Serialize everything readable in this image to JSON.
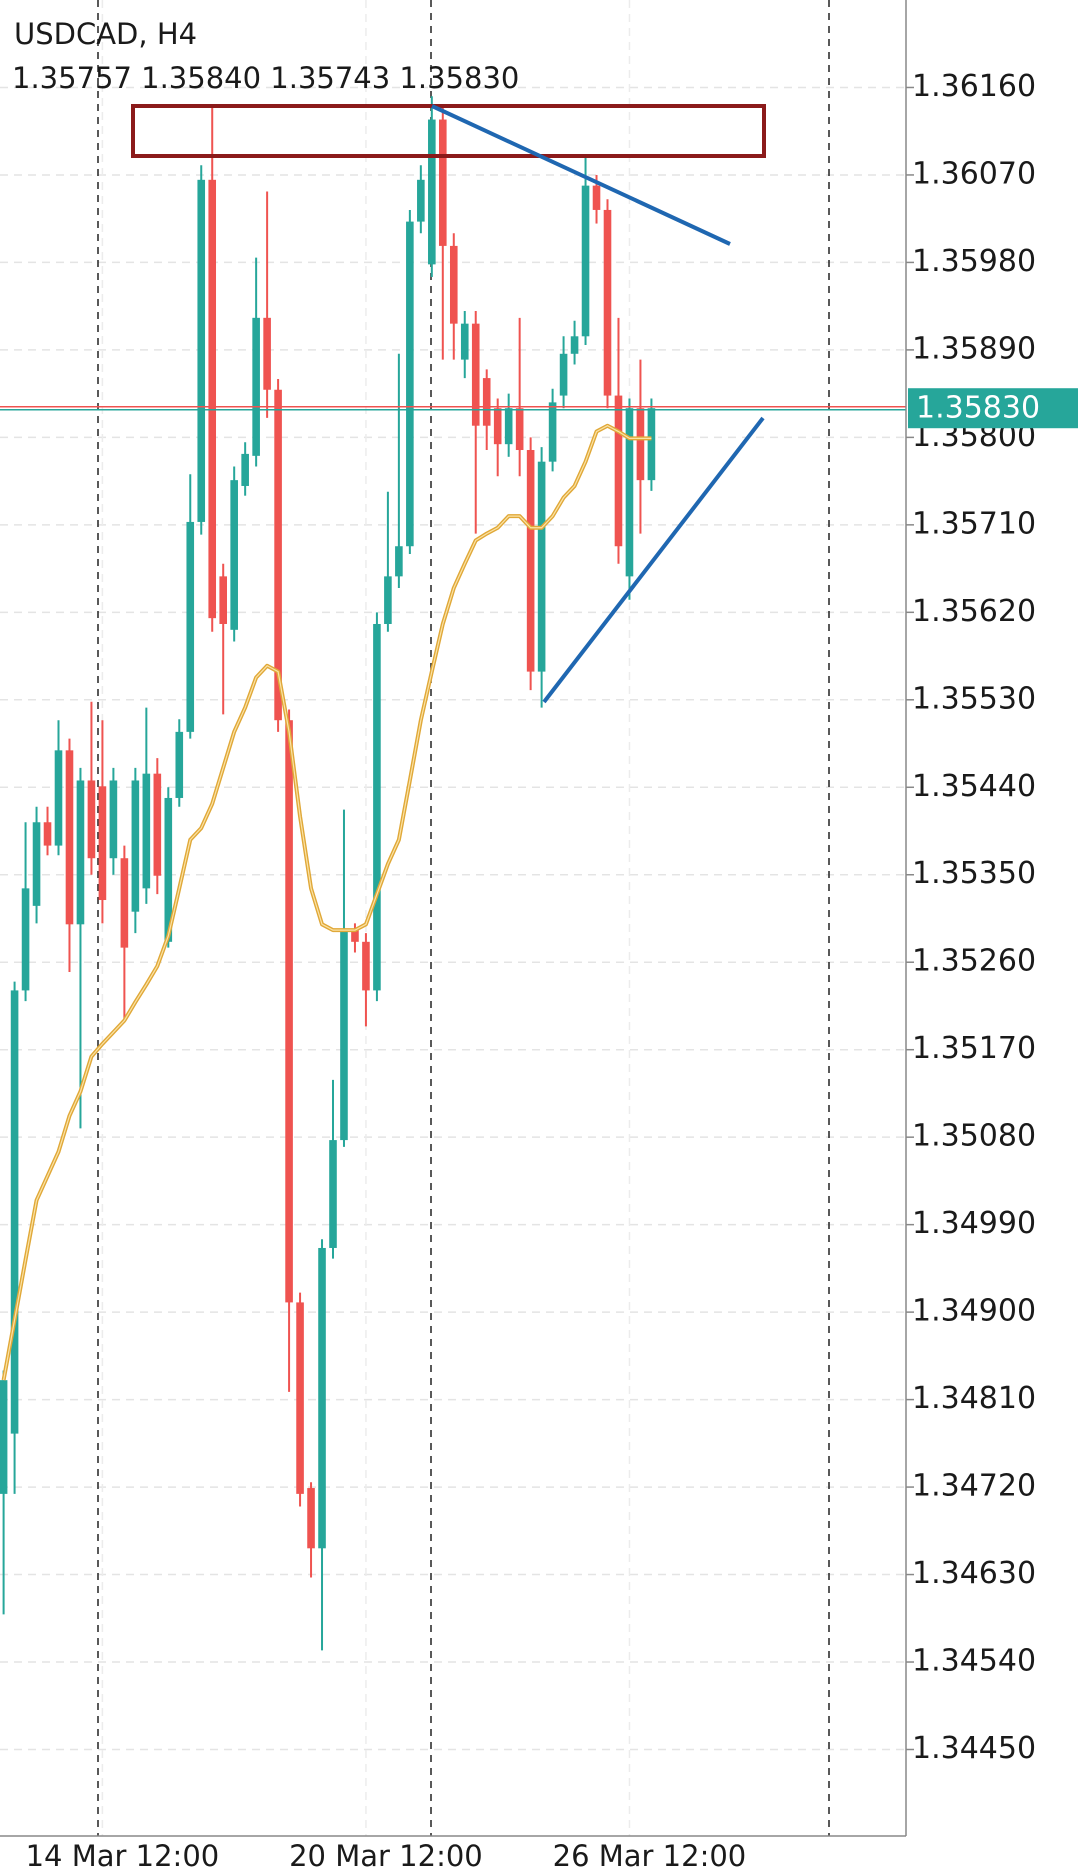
{
  "chart_data": {
    "type": "candlestick",
    "title": "USDCAD, H4",
    "subtitle": "1.35757 1.35840 1.35743 1.35830",
    "categories": [
      null,
      null,
      null,
      null,
      null,
      null,
      null,
      null,
      null,
      "14 Mar 12:00",
      null,
      null,
      null,
      null,
      null,
      null,
      null,
      null,
      null,
      null,
      null,
      null,
      null,
      null,
      null,
      null,
      null,
      null,
      null,
      null,
      null,
      null,
      null,
      "20 Mar 12:00",
      null,
      null,
      null,
      null,
      null,
      null,
      null,
      null,
      null,
      null,
      null,
      null,
      null,
      null,
      null,
      null,
      null,
      null,
      null,
      null,
      null,
      null,
      null,
      "26 Mar 12:00",
      null,
      null
    ],
    "open": [
      1.34713,
      1.34775,
      1.35231,
      1.35318,
      1.35404,
      1.3538,
      1.35478,
      1.35299,
      1.35447,
      1.35441,
      1.35367,
      1.35367,
      1.35312,
      1.35336,
      1.35454,
      1.35281,
      1.35429,
      1.35497,
      1.35713,
      1.36065,
      1.35657,
      1.35602,
      1.3575,
      1.35781,
      1.35923,
      1.35849,
      1.35509,
      1.3491,
      1.34719,
      1.34657,
      1.34966,
      1.35077,
      1.35293,
      1.35281,
      1.35231,
      1.35608,
      1.35657,
      1.35688,
      1.36022,
      1.35978,
      1.36127,
      1.35997,
      1.3588,
      1.35917,
      1.35861,
      1.3583,
      1.35793,
      1.3583,
      1.35787,
      1.35559,
      1.35775,
      1.35843,
      1.35886,
      1.35904,
      1.36059,
      1.36034,
      1.35843,
      1.35657,
      1.3583,
      1.35756
    ],
    "high": [
      1.3484,
      1.3524,
      1.35404,
      1.3542,
      1.3542,
      1.35509,
      1.3549,
      1.3546,
      1.35528,
      1.35509,
      1.3546,
      1.3538,
      1.3546,
      1.35522,
      1.3547,
      1.3544,
      1.3551,
      1.35762,
      1.3608,
      1.36139,
      1.3567,
      1.3577,
      1.35795,
      1.35985,
      1.36053,
      1.3586,
      1.3552,
      1.3492,
      1.34725,
      1.34975,
      1.35139,
      1.35417,
      1.353,
      1.3529,
      1.3562,
      1.35744,
      1.35886,
      1.36034,
      1.3608,
      1.36151,
      1.36139,
      1.3601,
      1.3593,
      1.3593,
      1.3587,
      1.3584,
      1.35845,
      1.35923,
      1.358,
      1.3579,
      1.3585,
      1.35904,
      1.3592,
      1.3609,
      1.3607,
      1.36045,
      1.35923,
      1.3584,
      1.3588,
      1.3584
    ],
    "low": [
      1.34589,
      1.34713,
      1.3522,
      1.353,
      1.3537,
      1.3537,
      1.3525,
      1.35089,
      1.3535,
      1.353,
      1.3535,
      1.35201,
      1.3529,
      1.3532,
      1.3533,
      1.35275,
      1.3542,
      1.3549,
      1.357,
      1.356,
      1.35515,
      1.3559,
      1.3574,
      1.3577,
      1.3582,
      1.35497,
      1.34818,
      1.347,
      1.34627,
      1.34552,
      1.34955,
      1.3507,
      1.3527,
      1.35194,
      1.3522,
      1.356,
      1.35645,
      1.3568,
      1.3601,
      1.35965,
      1.3588,
      1.3588,
      1.35861,
      1.35701,
      1.35787,
      1.3576,
      1.3578,
      1.3576,
      1.3554,
      1.35522,
      1.35765,
      1.3583,
      1.35875,
      1.35895,
      1.3602,
      1.3583,
      1.3567,
      1.35633,
      1.35701,
      1.35745
    ],
    "close": [
      1.3483,
      1.35231,
      1.35336,
      1.35404,
      1.3538,
      1.35478,
      1.35299,
      1.35447,
      1.35367,
      1.35324,
      1.35447,
      1.35275,
      1.35447,
      1.35454,
      1.35349,
      1.35429,
      1.35497,
      1.35713,
      1.36065,
      1.35614,
      1.35608,
      1.35756,
      1.35783,
      1.35923,
      1.35849,
      1.35509,
      1.3491,
      1.34713,
      1.34657,
      1.34966,
      1.35077,
      1.35293,
      1.35281,
      1.35231,
      1.35608,
      1.35657,
      1.35688,
      1.36022,
      1.36065,
      1.36127,
      1.35997,
      1.35917,
      1.35917,
      1.35812,
      1.35812,
      1.35793,
      1.3583,
      1.35787,
      1.35559,
      1.35775,
      1.35836,
      1.35886,
      1.35904,
      1.36059,
      1.36034,
      1.35843,
      1.35688,
      1.3583,
      1.35756,
      1.3583
    ],
    "up_color": "#26a69a",
    "down_color": "#ef5350",
    "overlay": {
      "color": "#e0a838",
      "values": [
        1.3483,
        1.34892,
        1.34954,
        1.35015,
        1.3504,
        1.35065,
        1.35102,
        1.35127,
        1.35163,
        1.35176,
        1.35188,
        1.352,
        1.35219,
        1.35237,
        1.35256,
        1.35287,
        1.35336,
        1.35386,
        1.35398,
        1.35423,
        1.3546,
        1.35497,
        1.35522,
        1.35553,
        1.35565,
        1.35559,
        1.35497,
        1.3541,
        1.35336,
        1.35299,
        1.35293,
        1.35293,
        1.35293,
        1.35299,
        1.3533,
        1.35361,
        1.35386,
        1.35447,
        1.35509,
        1.35559,
        1.35608,
        1.35645,
        1.3567,
        1.35694,
        1.35701,
        1.35707,
        1.35719,
        1.35719,
        1.35707,
        1.35707,
        1.35719,
        1.35738,
        1.3575,
        1.35775,
        1.35806,
        1.35812,
        1.35806,
        1.35799,
        1.35799,
        1.35799
      ]
    },
    "last_price": {
      "value": 1.3583,
      "label": "1.35830"
    },
    "ylim": [
      1.34361,
      1.3625
    ],
    "yticks": [
      {
        "value": 1.3616,
        "label": "1.36160"
      },
      {
        "value": 1.3607,
        "label": "1.36070"
      },
      {
        "value": 1.3598,
        "label": "1.35980"
      },
      {
        "value": 1.3589,
        "label": "1.35890"
      },
      {
        "value": 1.358,
        "label": "1.35800"
      },
      {
        "value": 1.3571,
        "label": "1.35710"
      },
      {
        "value": 1.3562,
        "label": "1.35620"
      },
      {
        "value": 1.3553,
        "label": "1.35530"
      },
      {
        "value": 1.3544,
        "label": "1.35440"
      },
      {
        "value": 1.3535,
        "label": "1.35350"
      },
      {
        "value": 1.3526,
        "label": "1.35260"
      },
      {
        "value": 1.3517,
        "label": "1.35170"
      },
      {
        "value": 1.3508,
        "label": "1.35080"
      },
      {
        "value": 1.3499,
        "label": "1.34990"
      },
      {
        "value": 1.349,
        "label": "1.34900"
      },
      {
        "value": 1.3481,
        "label": "1.34810"
      },
      {
        "value": 1.3472,
        "label": "1.34720"
      },
      {
        "value": 1.3463,
        "label": "1.34630"
      },
      {
        "value": 1.3454,
        "label": "1.34540"
      },
      {
        "value": 1.3445,
        "label": "1.34450"
      }
    ],
    "grid": true
  }
}
